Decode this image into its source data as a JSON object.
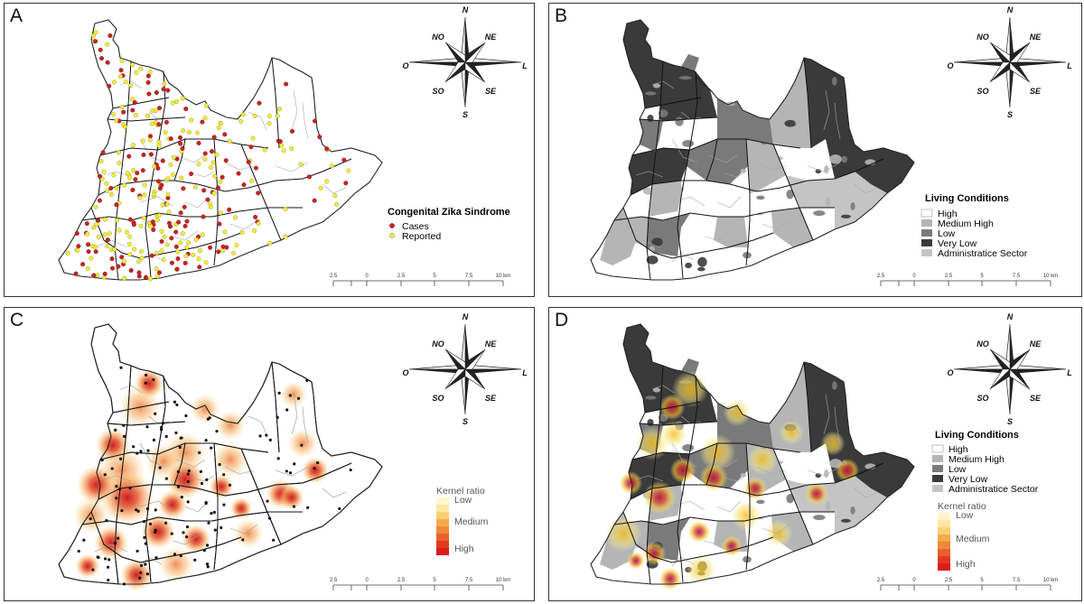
{
  "panels": [
    {
      "id": "A",
      "label": "A"
    },
    {
      "id": "B",
      "label": "B"
    },
    {
      "id": "C",
      "label": "C"
    },
    {
      "id": "D",
      "label": "D"
    }
  ],
  "compass": {
    "n": "N",
    "ne": "NE",
    "l": "L",
    "se": "SE",
    "s": "S",
    "so": "SO",
    "o": "O",
    "no": "NO"
  },
  "scale_bar": {
    "ticks": [
      "2.5",
      "0",
      "2.5",
      "5",
      "7.5",
      "10 km"
    ]
  },
  "legend_a": {
    "title": "Congenital Zika Sindrome",
    "items": [
      {
        "label": "Cases",
        "color": "#cc2222"
      },
      {
        "label": "Reported",
        "color": "#f2ee3a"
      }
    ]
  },
  "legend_living": {
    "title": "Living Conditions",
    "items": [
      {
        "label": "High",
        "color": "#ffffff"
      },
      {
        "label": "Medium High",
        "color": "#b5b5b5"
      },
      {
        "label": "Low",
        "color": "#7a7a7a"
      },
      {
        "label": "Very Low",
        "color": "#3a3a3a"
      },
      {
        "label": "Administratice Sector",
        "color": "#c4c4c4"
      }
    ]
  },
  "legend_kernel": {
    "title": "Kernel ratio",
    "low": "Low",
    "medium": "Medium",
    "high": "High",
    "ramp": [
      "#fff6cc",
      "#fde7a3",
      "#fbcf73",
      "#f7a94c",
      "#f08a3a",
      "#e9602c",
      "#e23a22",
      "#dd1c1c"
    ]
  }
}
